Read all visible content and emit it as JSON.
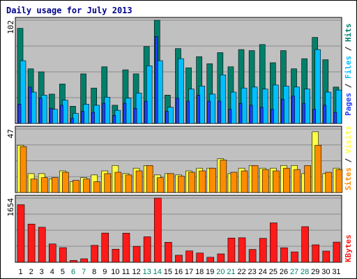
{
  "title": "Daily usage for July 2013",
  "colors": {
    "background": "#ffffff",
    "panel": "#c0c0c0",
    "border": "#000000",
    "gridline": "#8a8a8a",
    "title": "#00008b",
    "weekday": "#000000",
    "weekend": "#00806b",
    "hits": "#00806b",
    "files": "#00bfff",
    "pages": "#1f3fff",
    "visits": "#ffff40",
    "sites": "#ff8c00",
    "kbytes": "#ff1a1a"
  },
  "chart_data": [
    {
      "type": "bar",
      "title": "Daily usage for July 2013",
      "categories": [
        "1",
        "2",
        "3",
        "4",
        "5",
        "6",
        "7",
        "8",
        "9",
        "10",
        "11",
        "12",
        "13",
        "14",
        "15",
        "16",
        "17",
        "18",
        "19",
        "20",
        "21",
        "22",
        "23",
        "24",
        "25",
        "26",
        "27",
        "28",
        "29",
        "30",
        "31"
      ],
      "weekend_days": [
        "6",
        "7",
        "13",
        "14",
        "20",
        "21",
        "27",
        "28"
      ],
      "ylim": [
        0,
        102
      ],
      "y_tick_label": "102",
      "legend": [
        "Hits",
        "Files",
        "Pages"
      ],
      "legend_placement": "right",
      "series": [
        {
          "name": "Hits",
          "values": [
            94,
            54,
            51,
            29,
            39,
            17,
            49,
            35,
            56,
            18,
            53,
            49,
            76,
            102,
            28,
            74,
            55,
            66,
            59,
            70,
            56,
            73,
            72,
            78,
            60,
            72,
            54,
            64,
            85,
            63,
            36
          ]
        },
        {
          "name": "Files",
          "values": [
            62,
            31,
            28,
            14,
            23,
            10,
            19,
            18,
            26,
            13,
            25,
            30,
            57,
            62,
            16,
            64,
            34,
            37,
            29,
            48,
            31,
            35,
            36,
            34,
            38,
            37,
            36,
            34,
            73,
            31,
            33
          ]
        },
        {
          "name": "Pages",
          "values": [
            19,
            36,
            25,
            15,
            18,
            5,
            12,
            11,
            20,
            8,
            20,
            15,
            22,
            86,
            12,
            25,
            22,
            28,
            22,
            22,
            14,
            20,
            18,
            16,
            14,
            24,
            27,
            20,
            14,
            18,
            11
          ]
        }
      ]
    },
    {
      "type": "bar",
      "categories": [
        "1",
        "2",
        "3",
        "4",
        "5",
        "6",
        "7",
        "8",
        "9",
        "10",
        "11",
        "12",
        "13",
        "14",
        "15",
        "16",
        "17",
        "18",
        "19",
        "20",
        "21",
        "22",
        "23",
        "24",
        "25",
        "26",
        "27",
        "28",
        "29",
        "30",
        "31"
      ],
      "ylim": [
        0,
        47
      ],
      "y_tick_label": "47",
      "legend": [
        "Visits",
        "Sites"
      ],
      "legend_placement": "right",
      "series": [
        {
          "name": "Visits",
          "values": [
            35,
            14,
            14,
            10,
            16,
            8,
            11,
            13,
            16,
            20,
            14,
            18,
            20,
            13,
            14,
            13,
            16,
            18,
            18,
            25,
            14,
            18,
            20,
            18,
            18,
            20,
            20,
            14,
            45,
            14,
            18
          ]
        },
        {
          "name": "Sites",
          "values": [
            34,
            10,
            11,
            11,
            15,
            9,
            10,
            8,
            14,
            15,
            13,
            16,
            20,
            11,
            14,
            12,
            15,
            16,
            18,
            24,
            15,
            16,
            20,
            17,
            16,
            18,
            17,
            20,
            35,
            15,
            17
          ]
        }
      ]
    },
    {
      "type": "bar",
      "categories": [
        "1",
        "2",
        "3",
        "4",
        "5",
        "6",
        "7",
        "8",
        "9",
        "10",
        "11",
        "12",
        "13",
        "14",
        "15",
        "16",
        "17",
        "18",
        "19",
        "20",
        "21",
        "22",
        "23",
        "24",
        "25",
        "26",
        "27",
        "28",
        "29",
        "30",
        "31"
      ],
      "ylim": [
        0,
        1654
      ],
      "y_tick_label": "1654",
      "legend": [
        "KBytes"
      ],
      "legend_placement": "right",
      "series": [
        {
          "name": "KBytes",
          "values": [
            1484,
            985,
            903,
            472,
            377,
            48,
            90,
            436,
            753,
            337,
            751,
            410,
            657,
            1654,
            515,
            182,
            293,
            238,
            129,
            216,
            625,
            632,
            331,
            617,
            1016,
            374,
            267,
            918,
            450,
            288,
            520
          ]
        }
      ]
    }
  ]
}
